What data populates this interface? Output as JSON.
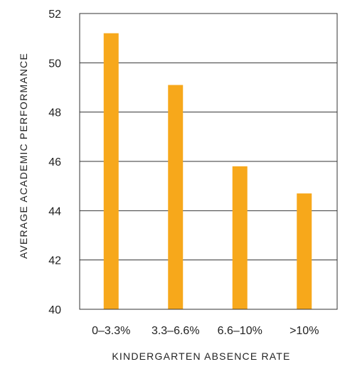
{
  "chart_data": {
    "type": "bar",
    "categories": [
      "0–3.3%",
      "3.3–6.6%",
      "6.6–10%",
      ">10%"
    ],
    "values": [
      51.2,
      49.1,
      45.8,
      44.7
    ],
    "xlabel": "KINDERGARTEN ABSENCE RATE",
    "ylabel": "AVERAGE ACADEMIC PERFORMANCE",
    "ylim": [
      40,
      52
    ],
    "yticks": [
      40,
      42,
      44,
      46,
      48,
      50,
      52
    ],
    "grid": "horizontal",
    "bar_color": "#F7A81B",
    "legend": "none"
  }
}
